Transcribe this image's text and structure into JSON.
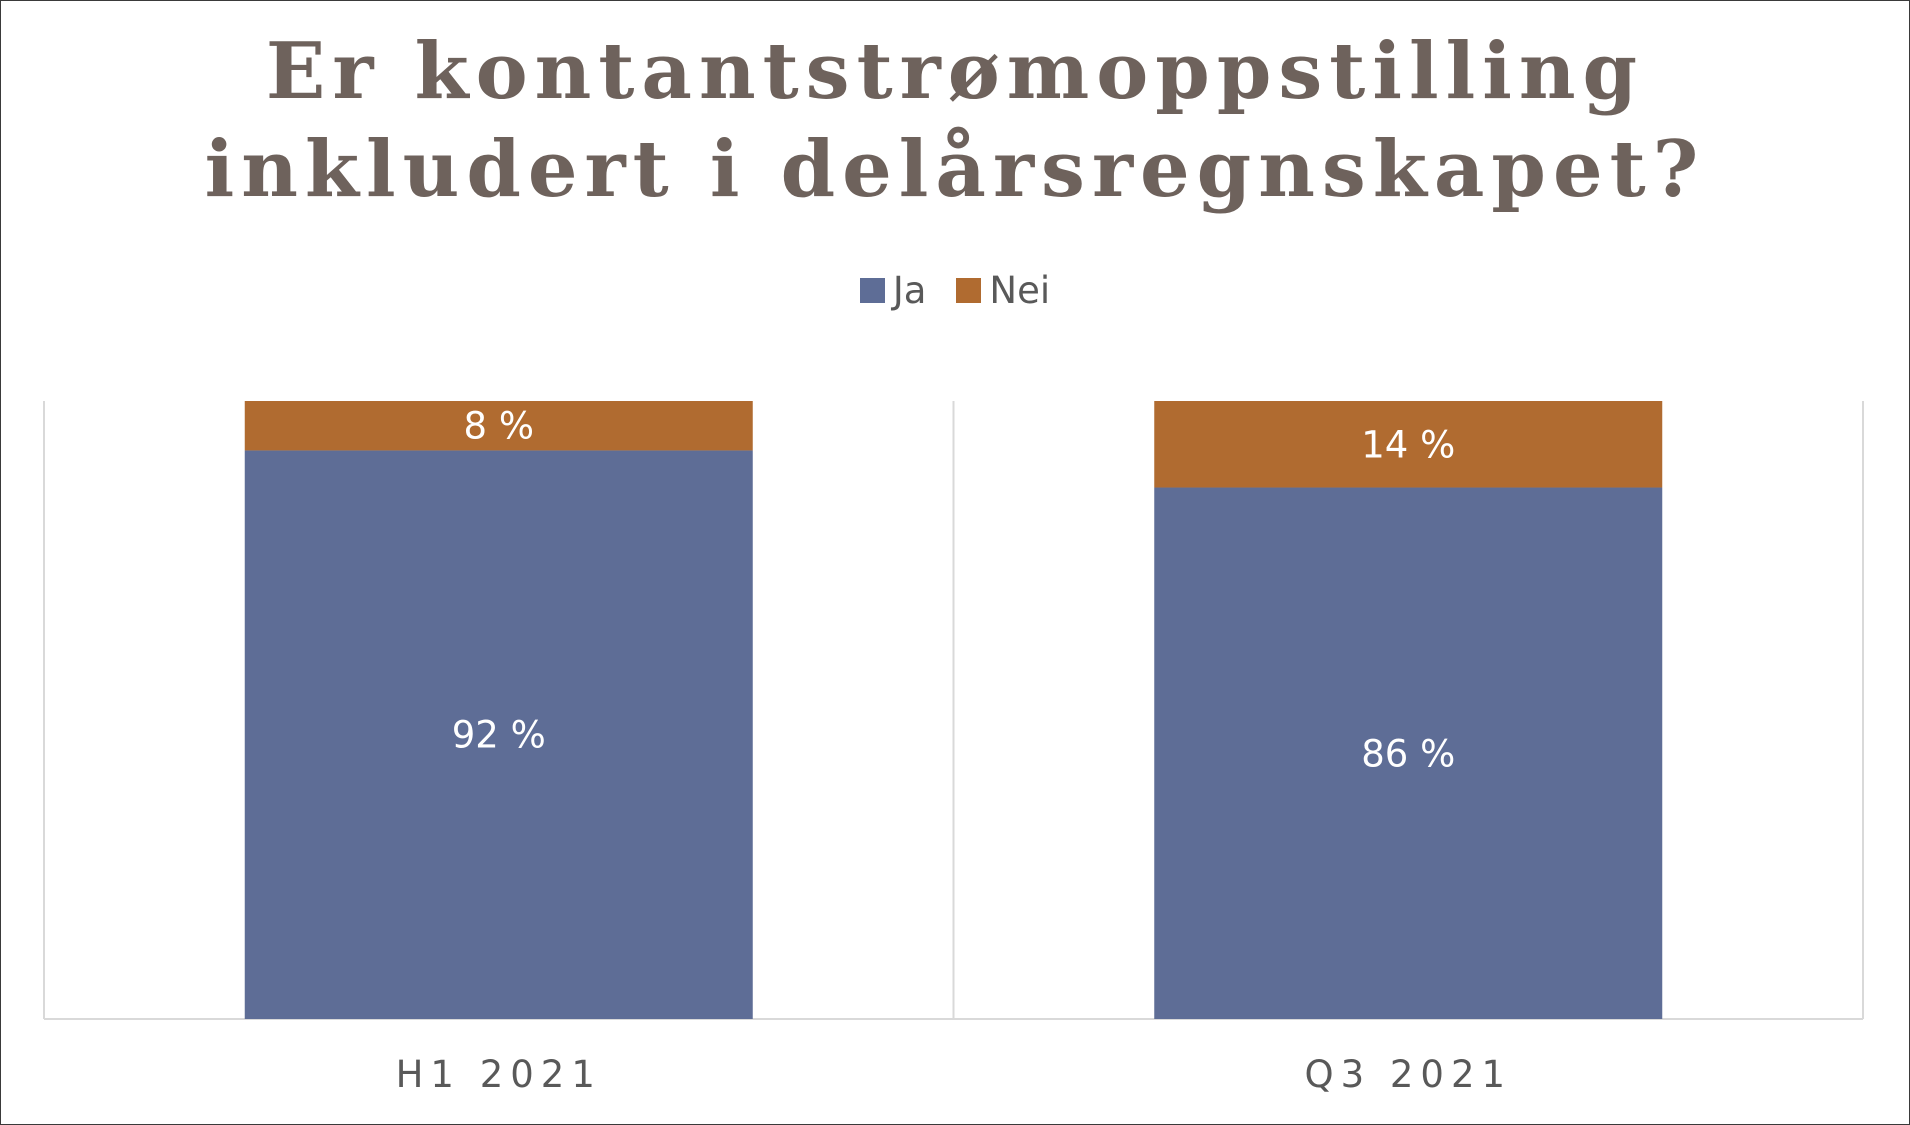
{
  "chart_data": {
    "type": "bar",
    "stacked": true,
    "title_lines": [
      "Er kontantstrømoppstilling",
      "inkludert i delårsregnskapet?"
    ],
    "categories": [
      "H1 2021",
      "Q3 2021"
    ],
    "series": [
      {
        "name": "Ja",
        "values": [
          92,
          86
        ],
        "labels": [
          "92 %",
          "86 %"
        ],
        "color": "#5e6d96"
      },
      {
        "name": "Nei",
        "values": [
          8,
          14
        ],
        "labels": [
          "8 %",
          "14 %"
        ],
        "color": "#b06b30"
      }
    ],
    "ylim": [
      0,
      100
    ],
    "legend_position": "top-center",
    "grid": false,
    "title_color": "#6e625c",
    "label_color": "#ffffff",
    "axis_label_color": "#595959",
    "axis_line_color": "#d9d9d9"
  }
}
